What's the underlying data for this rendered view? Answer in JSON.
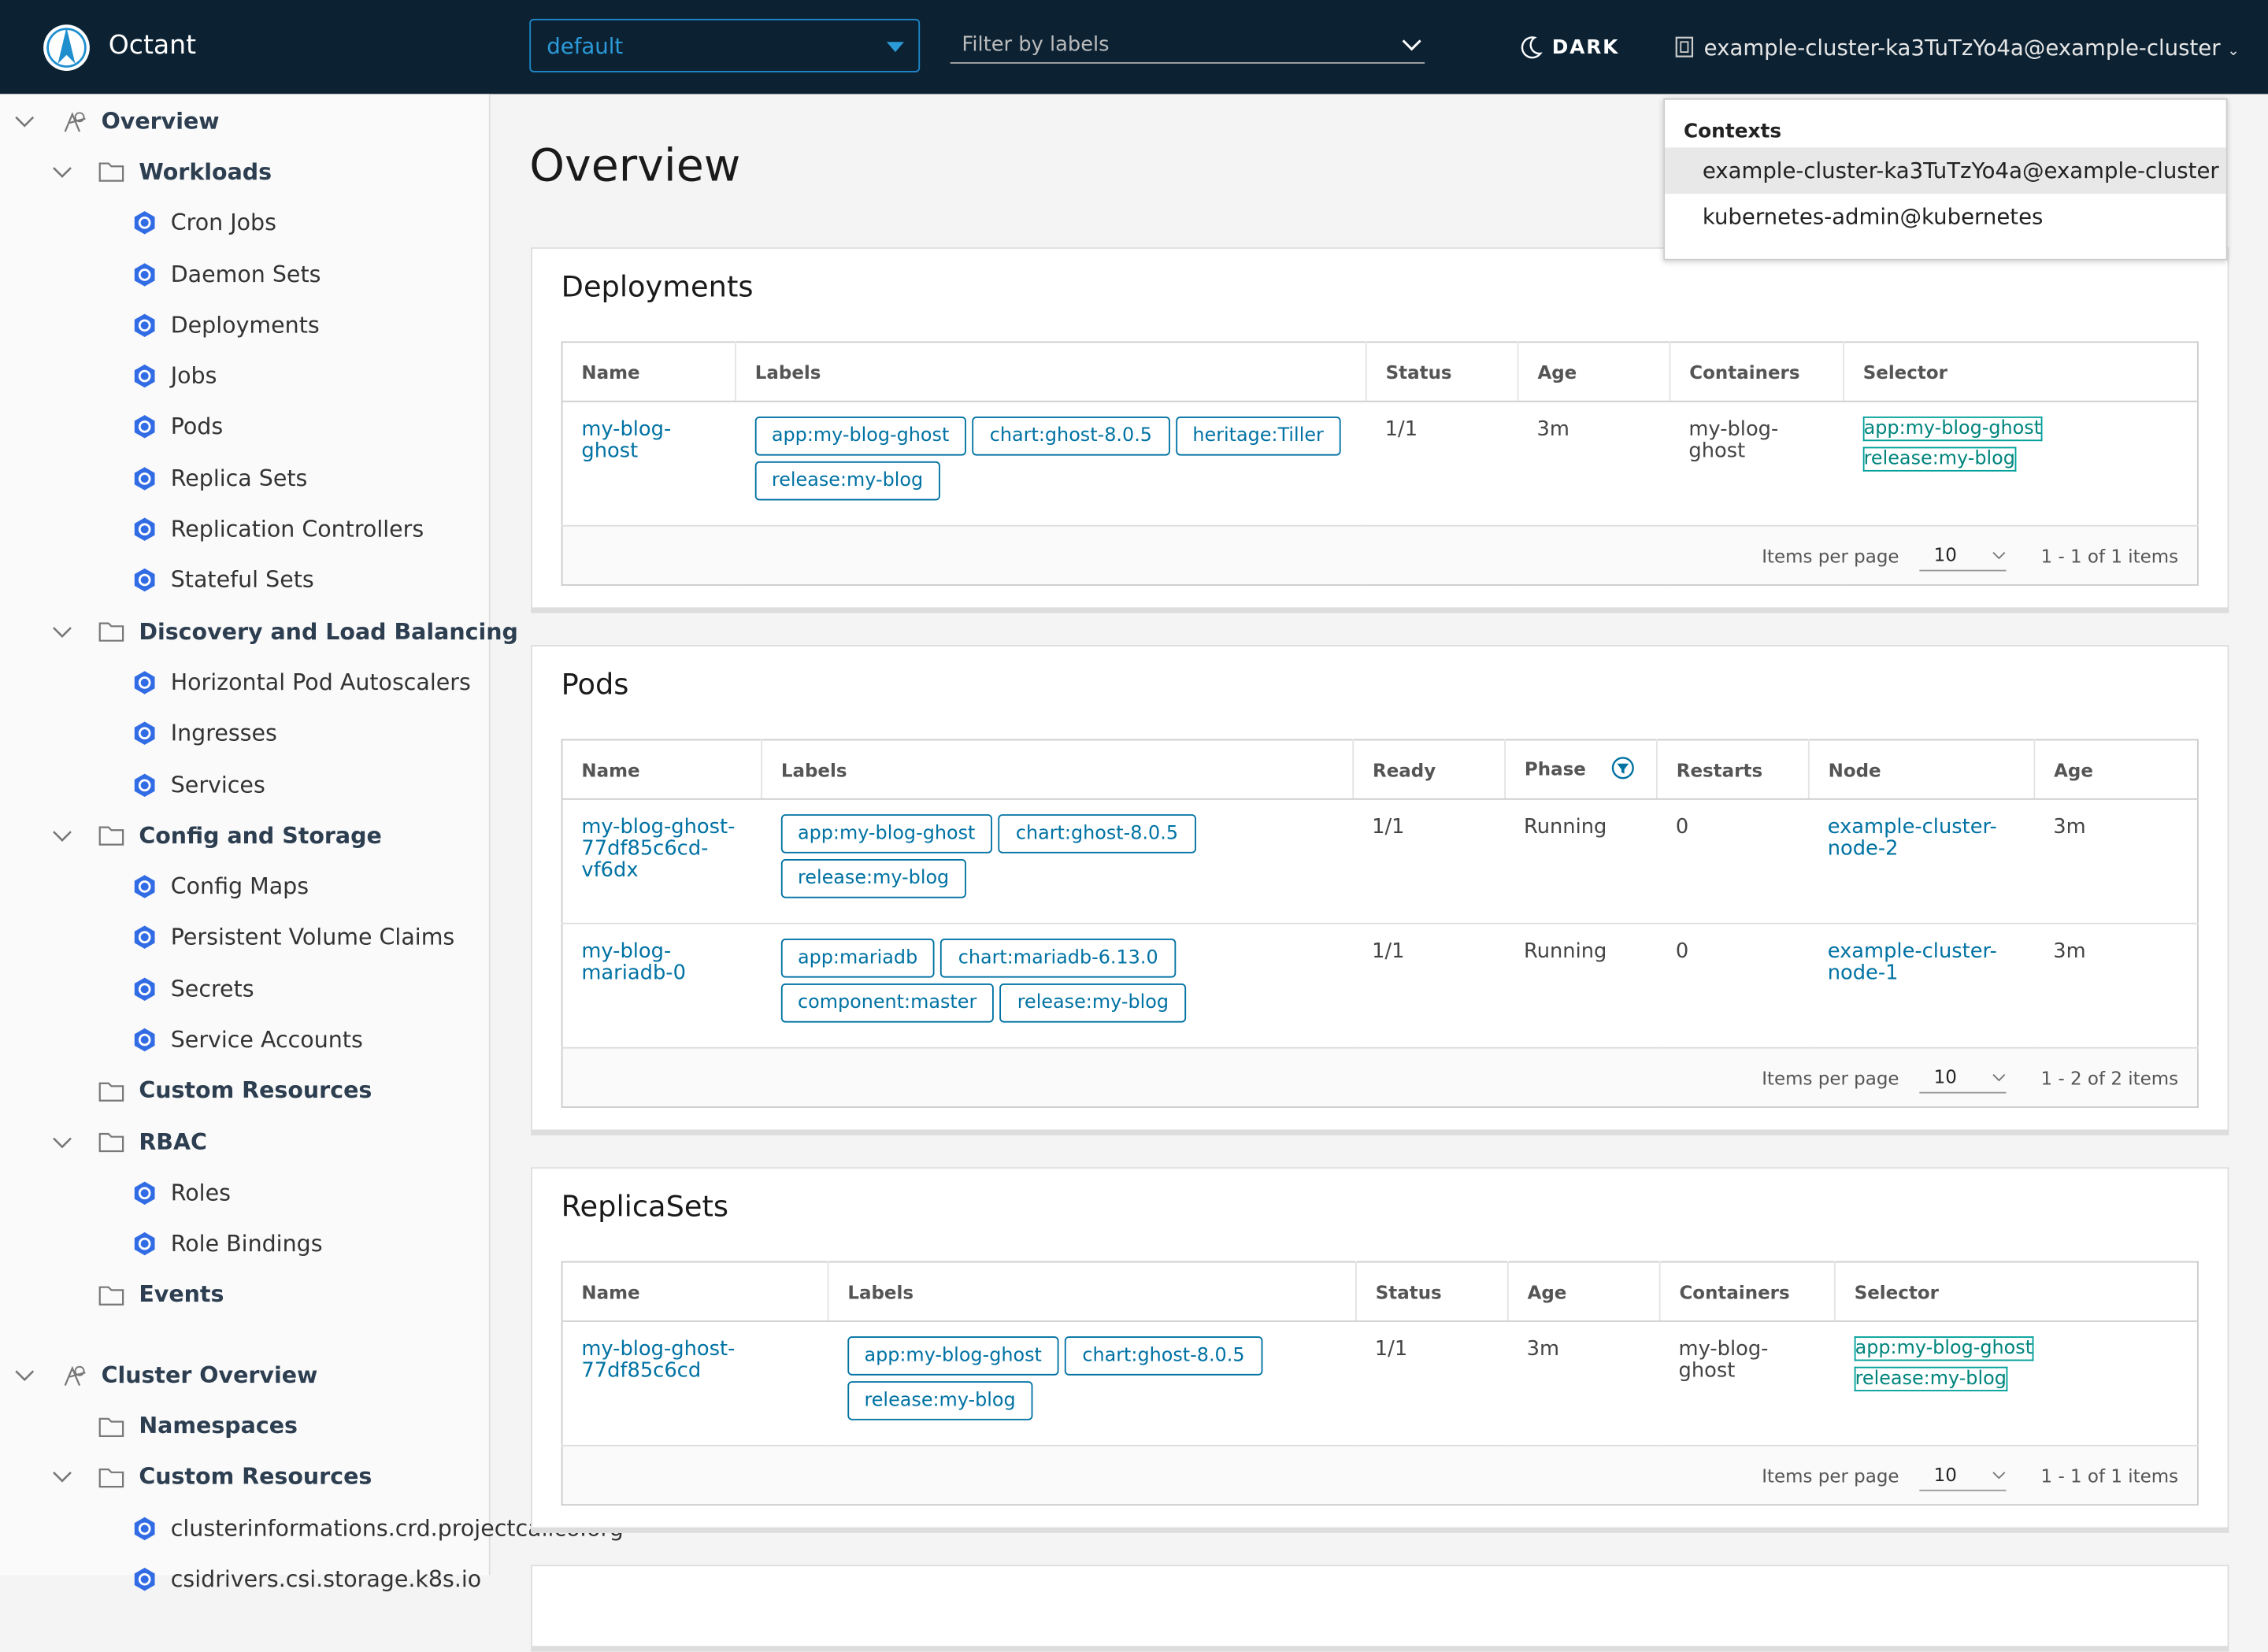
{
  "header": {
    "app_name": "Octant",
    "namespace": "default",
    "filter_placeholder": "Filter by labels",
    "theme_toggle": "DARK",
    "context": "example-cluster-ka3TuTzYo4a@example-cluster"
  },
  "contexts_menu": {
    "title": "Contexts",
    "items": [
      "example-cluster-ka3TuTzYo4a@example-cluster",
      "kubernetes-admin@kubernetes"
    ]
  },
  "nav": [
    {
      "label": "Overview",
      "children": [
        {
          "label": "Workloads",
          "children": [
            {
              "label": "Cron Jobs"
            },
            {
              "label": "Daemon Sets"
            },
            {
              "label": "Deployments"
            },
            {
              "label": "Jobs"
            },
            {
              "label": "Pods"
            },
            {
              "label": "Replica Sets"
            },
            {
              "label": "Replication Controllers"
            },
            {
              "label": "Stateful Sets"
            }
          ]
        },
        {
          "label": "Discovery and Load Balancing",
          "children": [
            {
              "label": "Horizontal Pod Autoscalers"
            },
            {
              "label": "Ingresses"
            },
            {
              "label": "Services"
            }
          ]
        },
        {
          "label": "Config and Storage",
          "children": [
            {
              "label": "Config Maps"
            },
            {
              "label": "Persistent Volume Claims"
            },
            {
              "label": "Secrets"
            },
            {
              "label": "Service Accounts"
            }
          ]
        },
        {
          "label": "Custom Resources"
        },
        {
          "label": "RBAC",
          "children": [
            {
              "label": "Roles"
            },
            {
              "label": "Role Bindings"
            }
          ]
        },
        {
          "label": "Events"
        }
      ]
    },
    {
      "label": "Cluster Overview",
      "children": [
        {
          "label": "Namespaces"
        },
        {
          "label": "Custom Resources",
          "children": [
            {
              "label": "clusterinformations.crd.projectcalico.org"
            },
            {
              "label": "csidrivers.csi.storage.k8s.io"
            }
          ]
        }
      ]
    }
  ],
  "page_title": "Overview",
  "tables": [
    {
      "title": "Deployments",
      "columns": [
        "Name",
        "Labels",
        "Status",
        "Age",
        "Containers",
        "Selector"
      ],
      "rows": [
        [
          "my-blog-ghost",
          {
            "labels": [
              "app:my-blog-ghost",
              "chart:ghost-8.0.5",
              "heritage:Tiller",
              "release:my-blog"
            ]
          },
          "1/1",
          "3m",
          "my-blog-ghost",
          {
            "selector": [
              "app:my-blog-ghost",
              "release:my-blog"
            ]
          }
        ]
      ],
      "footer": {
        "items_per_page": "Items per page",
        "page_size": "10",
        "range": "1 - 1 of 1 items"
      }
    },
    {
      "title": "Pods",
      "columns": [
        "Name",
        "Labels",
        "Ready",
        "Phase",
        "Restarts",
        "Node",
        "Age"
      ],
      "rows": [
        [
          "my-blog-ghost-77df85c6cd-vf6dx",
          {
            "labels": [
              "app:my-blog-ghost",
              "chart:ghost-8.0.5",
              "release:my-blog"
            ]
          },
          "1/1",
          "Running",
          "0",
          "example-cluster-node-2",
          "3m"
        ],
        [
          "my-blog-mariadb-0",
          {
            "labels": [
              "app:mariadb",
              "chart:mariadb-6.13.0",
              "component:master",
              "release:my-blog"
            ]
          },
          "1/1",
          "Running",
          "0",
          "example-cluster-node-1",
          "3m"
        ]
      ],
      "footer": {
        "items_per_page": "Items per page",
        "page_size": "10",
        "range": "1 - 2 of 2 items"
      }
    },
    {
      "title": "ReplicaSets",
      "columns": [
        "Name",
        "Labels",
        "Status",
        "Age",
        "Containers",
        "Selector"
      ],
      "rows": [
        [
          "my-blog-ghost-77df85c6cd",
          {
            "labels": [
              "app:my-blog-ghost",
              "chart:ghost-8.0.5",
              "release:my-blog"
            ]
          },
          "1/1",
          "3m",
          "my-blog-ghost",
          {
            "selector": [
              "app:my-blog-ghost",
              "release:my-blog"
            ]
          }
        ]
      ],
      "footer": {
        "items_per_page": "Items per page",
        "page_size": "10",
        "range": "1 - 1 of 1 items"
      }
    }
  ]
}
